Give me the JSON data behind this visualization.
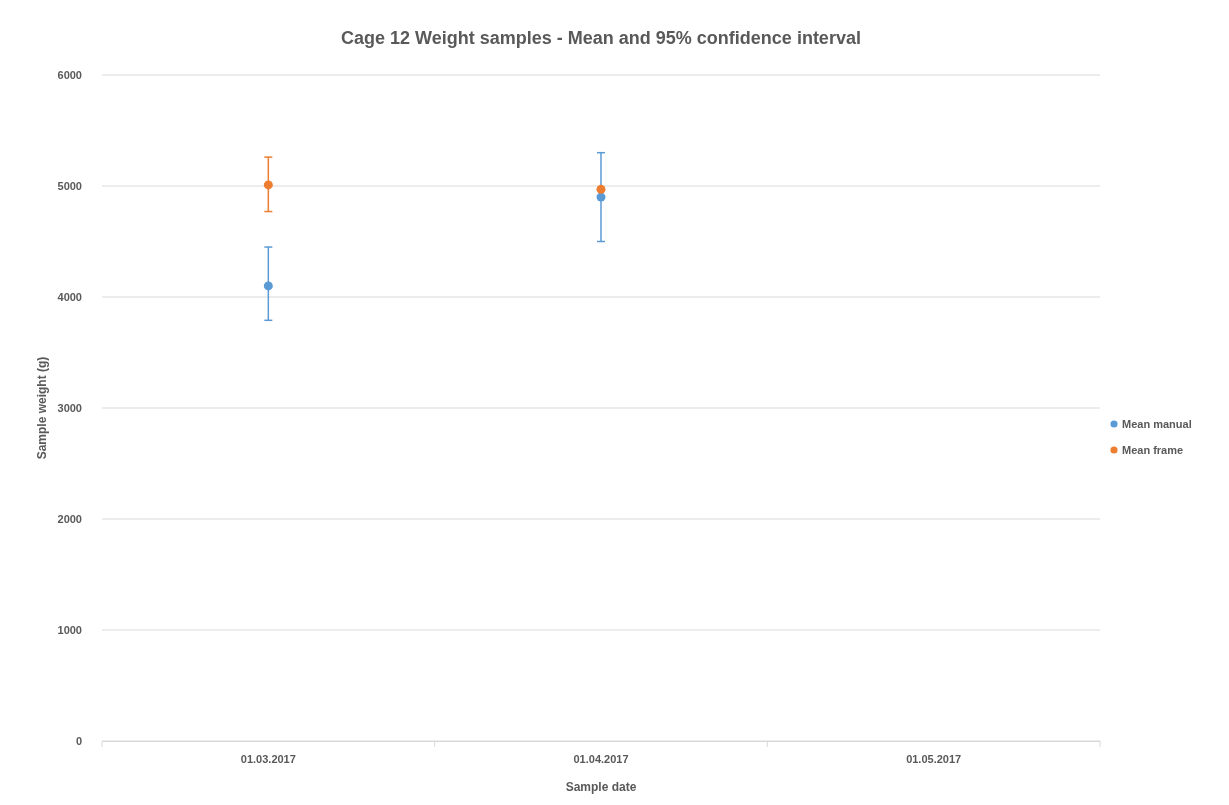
{
  "chart_data": {
    "type": "scatter",
    "title": "Cage 12 Weight samples - Mean and 95% confidence interval",
    "xlabel": "Sample date",
    "ylabel": "Sample weight (g)",
    "categories": [
      "01.03.2017",
      "01.04.2017",
      "01.05.2017"
    ],
    "series": [
      {
        "name": "Mean manual",
        "color": "#5b9bd5",
        "values": [
          4100,
          4900,
          null
        ],
        "errors": [
          [
            3790,
            4450
          ],
          [
            4500,
            5300
          ],
          null
        ]
      },
      {
        "name": "Mean frame",
        "color": "#ed7d31",
        "values": [
          5010,
          4970,
          null
        ],
        "errors": [
          [
            4770,
            5260
          ],
          null,
          null
        ]
      }
    ],
    "ylim": [
      0,
      6000
    ],
    "yticks": [
      0,
      1000,
      2000,
      3000,
      4000,
      5000,
      6000
    ],
    "grid": "y",
    "legend": "right",
    "marker": "circle"
  }
}
